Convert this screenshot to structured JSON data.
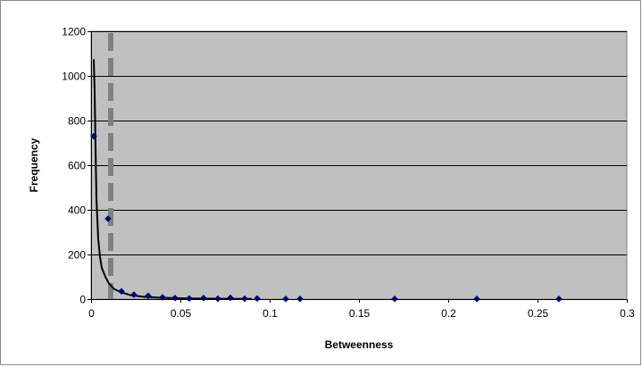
{
  "chart_data": {
    "type": "scatter",
    "xlabel": "Betweenness",
    "ylabel": "Frequency",
    "xlim": [
      0,
      0.3
    ],
    "ylim": [
      0,
      1200
    ],
    "x_ticks": [
      0,
      0.05,
      0.1,
      0.15,
      0.2,
      0.25,
      0.3
    ],
    "x_tick_labels": [
      "0",
      "0.05",
      "0.1",
      "0.15",
      "0.2",
      "0.25",
      "0.3"
    ],
    "y_ticks": [
      0,
      200,
      400,
      600,
      800,
      1000,
      1200
    ],
    "y_tick_labels": [
      "0",
      "200",
      "400",
      "600",
      "800",
      "1000",
      "1200"
    ],
    "grid": "horizontal",
    "legend": "none",
    "plot_background": "#c0c0c0",
    "series": [
      {
        "kind": "scatter",
        "marker": "diamond",
        "color": "#00007f",
        "x": [
          0.0015,
          0.0095,
          0.017,
          0.024,
          0.032,
          0.04,
          0.047,
          0.055,
          0.063,
          0.071,
          0.078,
          0.086,
          0.093,
          0.109,
          0.117,
          0.17,
          0.216,
          0.262
        ],
        "y": [
          730,
          360,
          35,
          20,
          15,
          8,
          5,
          3,
          5,
          2,
          6,
          2,
          3,
          1,
          1,
          1,
          1,
          1
        ]
      },
      {
        "kind": "fit-line",
        "color": "#000000",
        "x": [
          0.0015,
          0.002,
          0.0025,
          0.003,
          0.004,
          0.005,
          0.006,
          0.008,
          0.01,
          0.013,
          0.017,
          0.022,
          0.03,
          0.04,
          0.055,
          0.07,
          0.09
        ],
        "y": [
          1075,
          930,
          680,
          450,
          270,
          190,
          140,
          100,
          70,
          45,
          30,
          18,
          10,
          6,
          3,
          2,
          1
        ]
      },
      {
        "kind": "vertical-dashed-line",
        "color": "#808080",
        "x": 0.011
      }
    ]
  }
}
